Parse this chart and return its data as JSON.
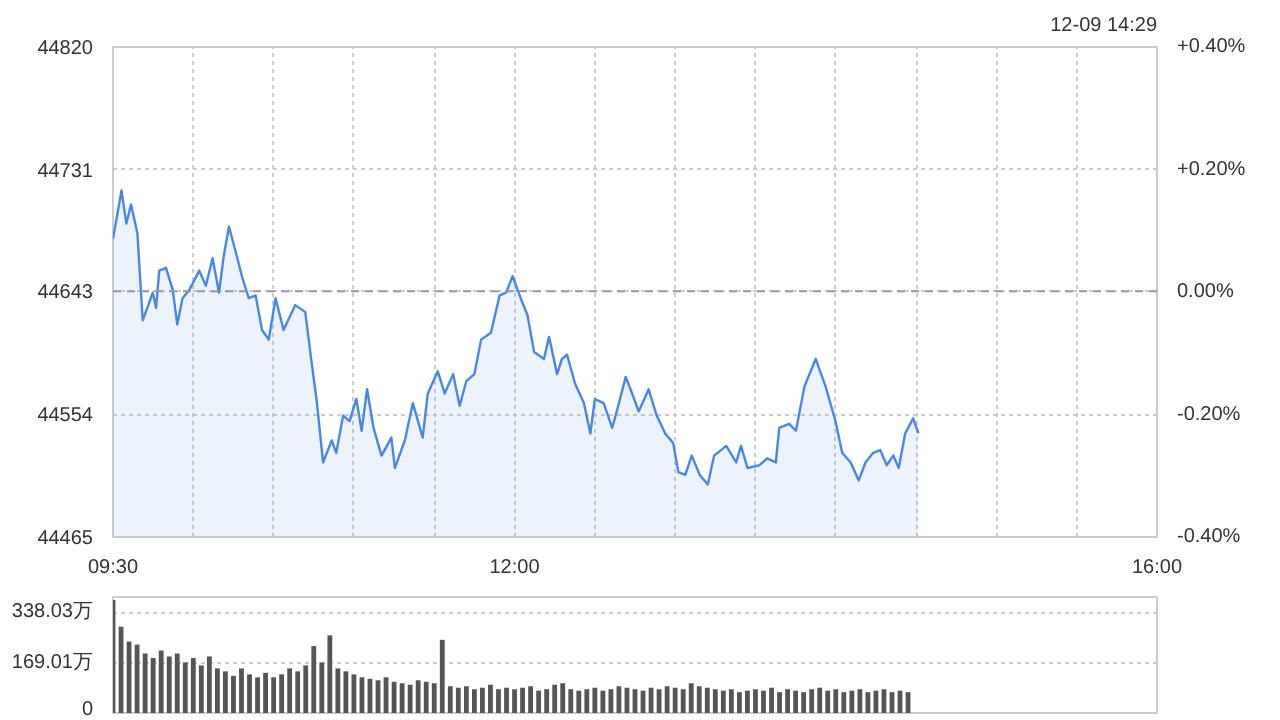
{
  "chart_data": [
    {
      "type": "area",
      "annotations": [
        "12-09 14:29"
      ],
      "x": [
        9.5,
        9.553,
        9.583,
        9.612,
        9.652,
        9.685,
        9.748,
        9.768,
        9.788,
        9.83,
        9.872,
        9.9,
        9.933,
        9.975,
        10.037,
        10.078,
        10.12,
        10.16,
        10.19,
        10.222,
        10.263,
        10.305,
        10.345,
        10.388,
        10.428,
        10.47,
        10.512,
        10.562,
        10.635,
        10.697,
        10.738,
        10.767,
        10.808,
        10.862,
        10.89,
        10.933,
        10.973,
        11.015,
        11.048,
        11.082,
        11.122,
        11.172,
        11.233,
        11.255,
        11.317,
        11.367,
        11.428,
        11.46,
        11.522,
        11.565,
        11.618,
        11.658,
        11.7,
        11.75,
        11.792,
        11.853,
        11.907,
        11.948,
        11.988,
        12.038,
        12.08,
        12.122,
        12.183,
        12.215,
        12.265,
        12.295,
        12.327,
        12.377,
        12.432,
        12.472,
        12.5,
        12.555,
        12.608,
        12.65,
        12.692,
        12.732,
        12.773,
        12.835,
        12.885,
        12.938,
        12.988,
        13.02,
        13.063,
        13.103,
        13.153,
        13.203,
        13.243,
        13.318,
        13.38,
        13.41,
        13.45,
        13.525,
        13.573,
        13.627,
        13.648,
        13.71,
        13.752,
        13.805,
        13.875,
        13.937,
        13.998,
        14.04,
        14.093,
        14.143,
        14.185,
        14.233,
        14.277,
        14.317,
        14.358,
        14.392,
        14.432,
        14.482,
        14.515
      ],
      "series": [
        {
          "color": "#4a86e8",
          "values": [
            44681,
            44716,
            44692,
            44706,
            44685,
            44622,
            44642,
            44631,
            44658,
            44660,
            44644,
            44619,
            44638,
            44644,
            44658,
            44647,
            44667,
            44642,
            44669,
            44690,
            44672,
            44653,
            44638,
            44640,
            44615,
            44608,
            44638,
            44615,
            44633,
            44628,
            44590,
            44565,
            44519,
            44535,
            44526,
            44553,
            44549,
            44565,
            44542,
            44572,
            44544,
            44524,
            44537,
            44515,
            44535,
            44562,
            44537,
            44569,
            44585,
            44569,
            44583,
            44560,
            44578,
            44583,
            44608,
            44613,
            44640,
            44642,
            44654,
            44638,
            44626,
            44599,
            44594,
            44610,
            44583,
            44594,
            44597,
            44576,
            44562,
            44540,
            44565,
            44562,
            44544,
            44562,
            44581,
            44569,
            44556,
            44572,
            44553,
            44540,
            44533,
            44512,
            44510,
            44524,
            44510,
            44503,
            44524,
            44531,
            44519,
            44531,
            44515,
            44517,
            44522,
            44519,
            44544,
            44547,
            44542,
            44574,
            44594,
            44574,
            44549,
            44526,
            44519,
            44506,
            44519,
            44526,
            44528,
            44517,
            44524,
            44515,
            44540,
            44551,
            44540
          ]
        }
      ],
      "xlim": [
        9.5,
        16
      ],
      "xticks": [
        {
          "value": 9.5,
          "label": "09:30"
        },
        {
          "value": 10,
          "label": null
        },
        {
          "value": 10.5,
          "label": null
        },
        {
          "value": 11,
          "label": null
        },
        {
          "value": 11.5,
          "label": null
        },
        {
          "value": 12,
          "label": "12:00"
        },
        {
          "value": 12.5,
          "label": null
        },
        {
          "value": 13,
          "label": null
        },
        {
          "value": 13.5,
          "label": null
        },
        {
          "value": 14,
          "label": null
        },
        {
          "value": 14.5,
          "label": null
        },
        {
          "value": 15,
          "label": null
        },
        {
          "value": 15.5,
          "label": null
        },
        {
          "value": 16,
          "label": "16:00"
        }
      ],
      "ylim": [
        44465,
        44820
      ],
      "yticks": [
        44465,
        44554,
        44643,
        44731,
        44820
      ],
      "y2lim": [
        -0.4,
        0.4
      ],
      "y2ticks": [
        {
          "value": -0.4,
          "label": "-0.40%"
        },
        {
          "value": -0.2,
          "label": "-0.20%"
        },
        {
          "value": 0,
          "label": "0.00%"
        },
        {
          "value": 0.2,
          "label": "+0.20%"
        },
        {
          "value": 0.4,
          "label": "+0.40%"
        }
      ],
      "ref_lines": [
        {
          "axis": "y",
          "value": 44643,
          "color": "#999999",
          "line_style": "dashed"
        }
      ],
      "grid": true
    },
    {
      "type": "bar",
      "tick_labels": "y",
      "x": [
        9.5,
        9.55,
        9.6,
        9.65,
        9.7,
        9.75,
        9.8,
        9.85,
        9.9,
        9.95,
        10.0,
        10.05,
        10.1,
        10.15,
        10.2,
        10.25,
        10.3,
        10.35,
        10.4,
        10.45,
        10.5,
        10.55,
        10.6,
        10.65,
        10.7,
        10.75,
        10.8,
        10.85,
        10.9,
        10.95,
        11.0,
        11.05,
        11.1,
        11.15,
        11.2,
        11.25,
        11.3,
        11.35,
        11.4,
        11.45,
        11.5,
        11.55,
        11.6,
        11.65,
        11.7,
        11.75,
        11.8,
        11.85,
        11.9,
        11.95,
        12.0,
        12.05,
        12.1,
        12.15,
        12.2,
        12.25,
        12.3,
        12.35,
        12.4,
        12.45,
        12.5,
        12.55,
        12.6,
        12.65,
        12.7,
        12.75,
        12.8,
        12.85,
        12.9,
        12.95,
        13.0,
        13.05,
        13.1,
        13.15,
        13.2,
        13.25,
        13.3,
        13.35,
        13.4,
        13.45,
        13.5,
        13.55,
        13.6,
        13.65,
        13.7,
        13.75,
        13.8,
        13.85,
        13.9,
        13.95,
        14.0,
        14.05,
        14.1,
        14.15,
        14.2,
        14.25,
        14.3,
        14.35,
        14.4,
        14.45
      ],
      "values": [
        380,
        290,
        240,
        230,
        200,
        185,
        210,
        190,
        200,
        170,
        185,
        160,
        190,
        150,
        140,
        125,
        150,
        130,
        120,
        135,
        120,
        130,
        150,
        140,
        160,
        225,
        170,
        261,
        150,
        140,
        130,
        120,
        115,
        110,
        120,
        105,
        100,
        95,
        110,
        105,
        100,
        246,
        90,
        85,
        90,
        80,
        85,
        95,
        80,
        85,
        80,
        85,
        90,
        75,
        80,
        95,
        100,
        80,
        75,
        80,
        85,
        75,
        80,
        90,
        85,
        80,
        75,
        85,
        80,
        90,
        85,
        80,
        100,
        90,
        85,
        80,
        75,
        80,
        70,
        75,
        80,
        75,
        85,
        70,
        80,
        75,
        70,
        80,
        85,
        75,
        80,
        70,
        75,
        80,
        70,
        75,
        80,
        70,
        75,
        70
      ],
      "color": "#555555",
      "xlim": [
        9.5,
        16
      ],
      "ylim": [
        0,
        390
      ],
      "yticks": [
        0,
        {
          "value": 169.01,
          "label": "169.01万"
        },
        {
          "value": 338.03,
          "label": "338.03万"
        }
      ],
      "grid": "y"
    }
  ]
}
